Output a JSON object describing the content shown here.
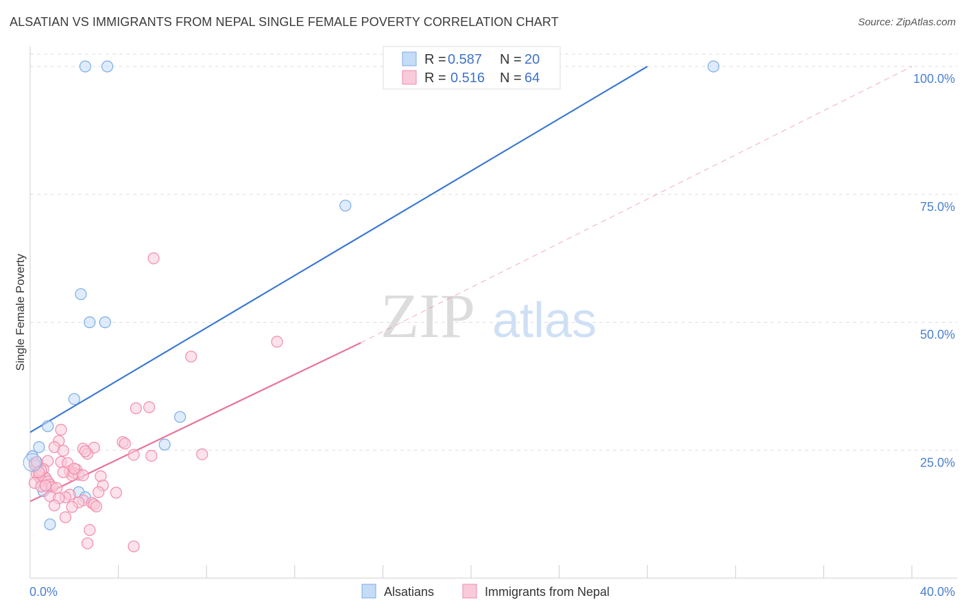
{
  "title": "ALSATIAN VS IMMIGRANTS FROM NEPAL SINGLE FEMALE POVERTY CORRELATION CHART",
  "source": "Source: ZipAtlas.com",
  "watermark": {
    "zip": "ZIP",
    "atlas": "atlas"
  },
  "colors": {
    "blue": "#7aaae8",
    "blue_fill": "#c5dcf7",
    "blue_line": "#3a78d0",
    "pink": "#f08bab",
    "pink_fill": "#f9cad9",
    "pink_line": "#e8739a",
    "grid": "#dddddd",
    "tick_text": "#4a7fd0"
  },
  "legend": {
    "rows": [
      {
        "r_label": "R =",
        "r_value": "0.587",
        "n_label": "N =",
        "n_value": "20"
      },
      {
        "r_label": "R =",
        "r_value": "0.516",
        "n_label": "N =",
        "n_value": "64"
      }
    ]
  },
  "bottom_legend": [
    "Alsatians",
    "Immigrants from Nepal"
  ],
  "chart_data": {
    "type": "scatter",
    "title": "ALSATIAN VS IMMIGRANTS FROM NEPAL SINGLE FEMALE POVERTY CORRELATION CHART",
    "xlabel": "",
    "ylabel": "Single Female Poverty",
    "xlim": [
      0,
      40
    ],
    "ylim": [
      0,
      100
    ],
    "x_tick_labels": [
      "0.0%",
      "40.0%"
    ],
    "y_ticks": [
      25,
      50,
      75,
      100
    ],
    "y_tick_labels": [
      "25.0%",
      "50.0%",
      "75.0%",
      "100.0%"
    ],
    "series": [
      {
        "name": "Alsatians",
        "R": 0.587,
        "N": 20,
        "trend": {
          "x0": 0,
          "y0": 28.5,
          "x1": 28,
          "y1": 100
        },
        "points": [
          [
            2.5,
            100
          ],
          [
            3.5,
            100
          ],
          [
            31,
            100
          ],
          [
            14.3,
            72.8
          ],
          [
            2.3,
            55.5
          ],
          [
            2.7,
            50
          ],
          [
            3.4,
            50
          ],
          [
            2.0,
            35
          ],
          [
            6.8,
            31.5
          ],
          [
            0.8,
            29.7
          ],
          [
            6.1,
            26.1
          ],
          [
            0.4,
            25.6
          ],
          [
            0.1,
            23.8
          ],
          [
            0.2,
            22.5
          ],
          [
            0.3,
            22.0
          ],
          [
            0.7,
            19.5
          ],
          [
            0.6,
            17.0
          ],
          [
            2.2,
            16.8
          ],
          [
            2.5,
            15.8
          ],
          [
            0.9,
            10.5
          ]
        ]
      },
      {
        "name": "Immigrants from Nepal",
        "R": 0.516,
        "N": 64,
        "trend": {
          "x0": 0,
          "y0": 15,
          "x1": 15,
          "y1": 46,
          "dash_x1": 40,
          "dash_y1": 100
        },
        "points": [
          [
            5.6,
            62.5
          ],
          [
            11.2,
            46.2
          ],
          [
            7.3,
            43.3
          ],
          [
            4.8,
            33.2
          ],
          [
            5.4,
            33.4
          ],
          [
            1.4,
            29.0
          ],
          [
            1.3,
            26.8
          ],
          [
            4.2,
            26.6
          ],
          [
            4.3,
            26.3
          ],
          [
            1.1,
            25.6
          ],
          [
            2.4,
            25.3
          ],
          [
            2.9,
            25.5
          ],
          [
            1.5,
            24.9
          ],
          [
            2.6,
            24.3
          ],
          [
            7.8,
            24.2
          ],
          [
            4.7,
            24.1
          ],
          [
            5.5,
            23.9
          ],
          [
            0.8,
            22.9
          ],
          [
            1.4,
            22.7
          ],
          [
            1.7,
            22.5
          ],
          [
            0.2,
            22.1
          ],
          [
            0.6,
            21.3
          ],
          [
            2.1,
            21.2
          ],
          [
            1.8,
            20.9
          ],
          [
            2.0,
            20.5
          ],
          [
            2.2,
            20.2
          ],
          [
            0.3,
            20.3
          ],
          [
            0.4,
            19.9
          ],
          [
            1.9,
            20.1
          ],
          [
            2.4,
            20.1
          ],
          [
            3.2,
            19.9
          ],
          [
            0.7,
            19.6
          ],
          [
            0.5,
            19.1
          ],
          [
            0.8,
            18.9
          ],
          [
            0.2,
            18.6
          ],
          [
            0.9,
            18.3
          ],
          [
            3.3,
            18.1
          ],
          [
            0.5,
            17.9
          ],
          [
            1.0,
            17.8
          ],
          [
            1.2,
            17.6
          ],
          [
            3.1,
            16.8
          ],
          [
            3.9,
            16.7
          ],
          [
            1.8,
            16.3
          ],
          [
            0.9,
            16.0
          ],
          [
            1.6,
            15.8
          ],
          [
            1.3,
            15.6
          ],
          [
            2.4,
            15.2
          ],
          [
            2.2,
            14.8
          ],
          [
            2.8,
            14.7
          ],
          [
            2.9,
            14.4
          ],
          [
            1.1,
            14.2
          ],
          [
            3.0,
            14.0
          ],
          [
            1.9,
            13.9
          ],
          [
            1.6,
            11.9
          ],
          [
            2.7,
            9.4
          ],
          [
            2.6,
            6.8
          ],
          [
            4.7,
            6.2
          ],
          [
            0.3,
            22.7
          ],
          [
            0.5,
            21.0
          ],
          [
            0.4,
            20.7
          ],
          [
            2.0,
            21.4
          ],
          [
            2.5,
            24.8
          ],
          [
            0.7,
            18.1
          ],
          [
            1.5,
            20.7
          ]
        ]
      }
    ]
  }
}
